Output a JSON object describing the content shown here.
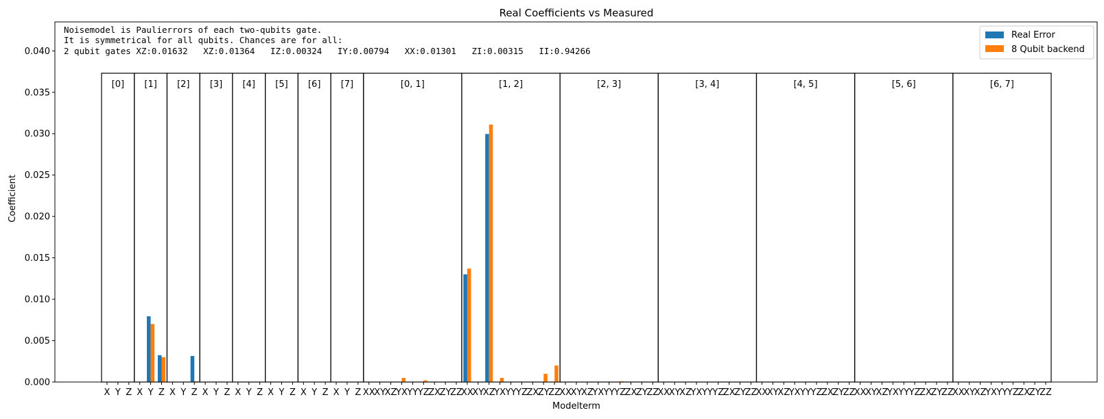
{
  "chart_data": {
    "type": "bar",
    "title": "Real Coefficients vs Measured",
    "xlabel": "Modelterm",
    "ylabel": "Coefficient",
    "ylim": [
      0,
      0.0435
    ],
    "yticks": [
      "0.000",
      "0.005",
      "0.010",
      "0.015",
      "0.020",
      "0.025",
      "0.030",
      "0.035",
      "0.040"
    ],
    "ytick_values": [
      0,
      0.005,
      0.01,
      0.015,
      0.02,
      0.025,
      0.03,
      0.035,
      0.04
    ],
    "annotation_lines": [
      "Noisemodel is Paulierrors of each two-qubits gate.",
      "It is symmetrical for all qubits. Chances are for all:",
      "2 qubit gates XZ:0.01632   XZ:0.01364   IZ:0.00324   IY:0.00794   XX:0.01301   ZI:0.00315   II:0.94266"
    ],
    "legend": {
      "placement": "top-right",
      "entries": [
        {
          "label": "Real Error",
          "color": "#1f77b4"
        },
        {
          "label": "8 Qubit backend",
          "color": "#ff7f0e"
        }
      ]
    },
    "group_box_top": 0.0373,
    "groups": [
      {
        "label": "[0]",
        "terms": [
          "X",
          "Y",
          "Z"
        ],
        "real": [
          0,
          0,
          0
        ],
        "measured": [
          0,
          0,
          0
        ]
      },
      {
        "label": "[1]",
        "terms": [
          "X",
          "Y",
          "Z"
        ],
        "real": [
          0,
          0.00794,
          0.00324
        ],
        "measured": [
          0,
          0.007,
          0.003
        ]
      },
      {
        "label": "[2]",
        "terms": [
          "X",
          "Y",
          "Z"
        ],
        "real": [
          0,
          0,
          0.00315
        ],
        "measured": [
          5e-05,
          0,
          0.0001
        ]
      },
      {
        "label": "[3]",
        "terms": [
          "X",
          "Y",
          "Z"
        ],
        "real": [
          0,
          0,
          0
        ],
        "measured": [
          0,
          0,
          0
        ]
      },
      {
        "label": "[4]",
        "terms": [
          "X",
          "Y",
          "Z"
        ],
        "real": [
          0,
          0,
          0
        ],
        "measured": [
          0,
          0,
          0
        ]
      },
      {
        "label": "[5]",
        "terms": [
          "X",
          "Y",
          "Z"
        ],
        "real": [
          0,
          0,
          0
        ],
        "measured": [
          0,
          0,
          0
        ]
      },
      {
        "label": "[6]",
        "terms": [
          "X",
          "Y",
          "Z"
        ],
        "real": [
          0,
          0,
          0
        ],
        "measured": [
          0,
          0,
          0
        ]
      },
      {
        "label": "[7]",
        "terms": [
          "X",
          "Y",
          "Z"
        ],
        "real": [
          0,
          0,
          0
        ],
        "measured": [
          0,
          0,
          0
        ]
      },
      {
        "label": "[0, 1]",
        "terms": [
          "XX",
          "XY",
          "XZ",
          "YX",
          "YY",
          "YZ",
          "ZX",
          "ZY",
          "ZZ"
        ],
        "real": [
          0,
          0,
          0,
          0,
          0,
          0,
          0,
          0,
          0
        ],
        "measured": [
          0,
          0,
          0,
          0.0005,
          0,
          0.0002,
          0,
          0,
          0
        ]
      },
      {
        "label": "[1, 2]",
        "terms": [
          "XX",
          "XY",
          "XZ",
          "YX",
          "YY",
          "YZ",
          "ZX",
          "ZY",
          "ZZ"
        ],
        "real": [
          0.01301,
          0,
          0.02996,
          0,
          0,
          0,
          0,
          0,
          0
        ],
        "measured": [
          0.0137,
          0,
          0.0311,
          0.0005,
          0,
          0,
          0,
          0.001,
          0.002
        ]
      },
      {
        "label": "[2, 3]",
        "terms": [
          "XX",
          "XY",
          "XZ",
          "YX",
          "YY",
          "YZ",
          "ZX",
          "ZY",
          "ZZ"
        ],
        "real": [
          0,
          0,
          0,
          0,
          0,
          0,
          0,
          0,
          0
        ],
        "measured": [
          0,
          0,
          0,
          0,
          0,
          0.0001,
          0,
          0,
          5e-05
        ]
      },
      {
        "label": "[3, 4]",
        "terms": [
          "XX",
          "XY",
          "XZ",
          "YX",
          "YY",
          "YZ",
          "ZX",
          "ZY",
          "ZZ"
        ],
        "real": [
          0,
          0,
          0,
          0,
          0,
          0,
          0,
          0,
          0
        ],
        "measured": [
          0,
          0,
          0,
          0,
          0,
          0,
          0,
          0,
          0
        ]
      },
      {
        "label": "[4, 5]",
        "terms": [
          "XX",
          "XY",
          "XZ",
          "YX",
          "YY",
          "YZ",
          "ZX",
          "ZY",
          "ZZ"
        ],
        "real": [
          0,
          0,
          0,
          0,
          0,
          0,
          0,
          0,
          0
        ],
        "measured": [
          0,
          0,
          0,
          0,
          0,
          0,
          0,
          0,
          0
        ]
      },
      {
        "label": "[5, 6]",
        "terms": [
          "XX",
          "XY",
          "XZ",
          "YX",
          "YY",
          "YZ",
          "ZX",
          "ZY",
          "ZZ"
        ],
        "real": [
          0,
          0,
          0,
          0,
          0,
          0,
          0,
          0,
          0
        ],
        "measured": [
          0,
          0,
          0,
          0,
          0,
          0,
          0,
          0,
          0
        ]
      },
      {
        "label": "[6, 7]",
        "terms": [
          "XX",
          "XY",
          "XZ",
          "YX",
          "YY",
          "YZ",
          "ZX",
          "ZY",
          "ZZ"
        ],
        "real": [
          0,
          0,
          0,
          0,
          0,
          0,
          0,
          0,
          0
        ],
        "measured": [
          0,
          0,
          0,
          0,
          0,
          0,
          0,
          0,
          0
        ]
      }
    ]
  }
}
